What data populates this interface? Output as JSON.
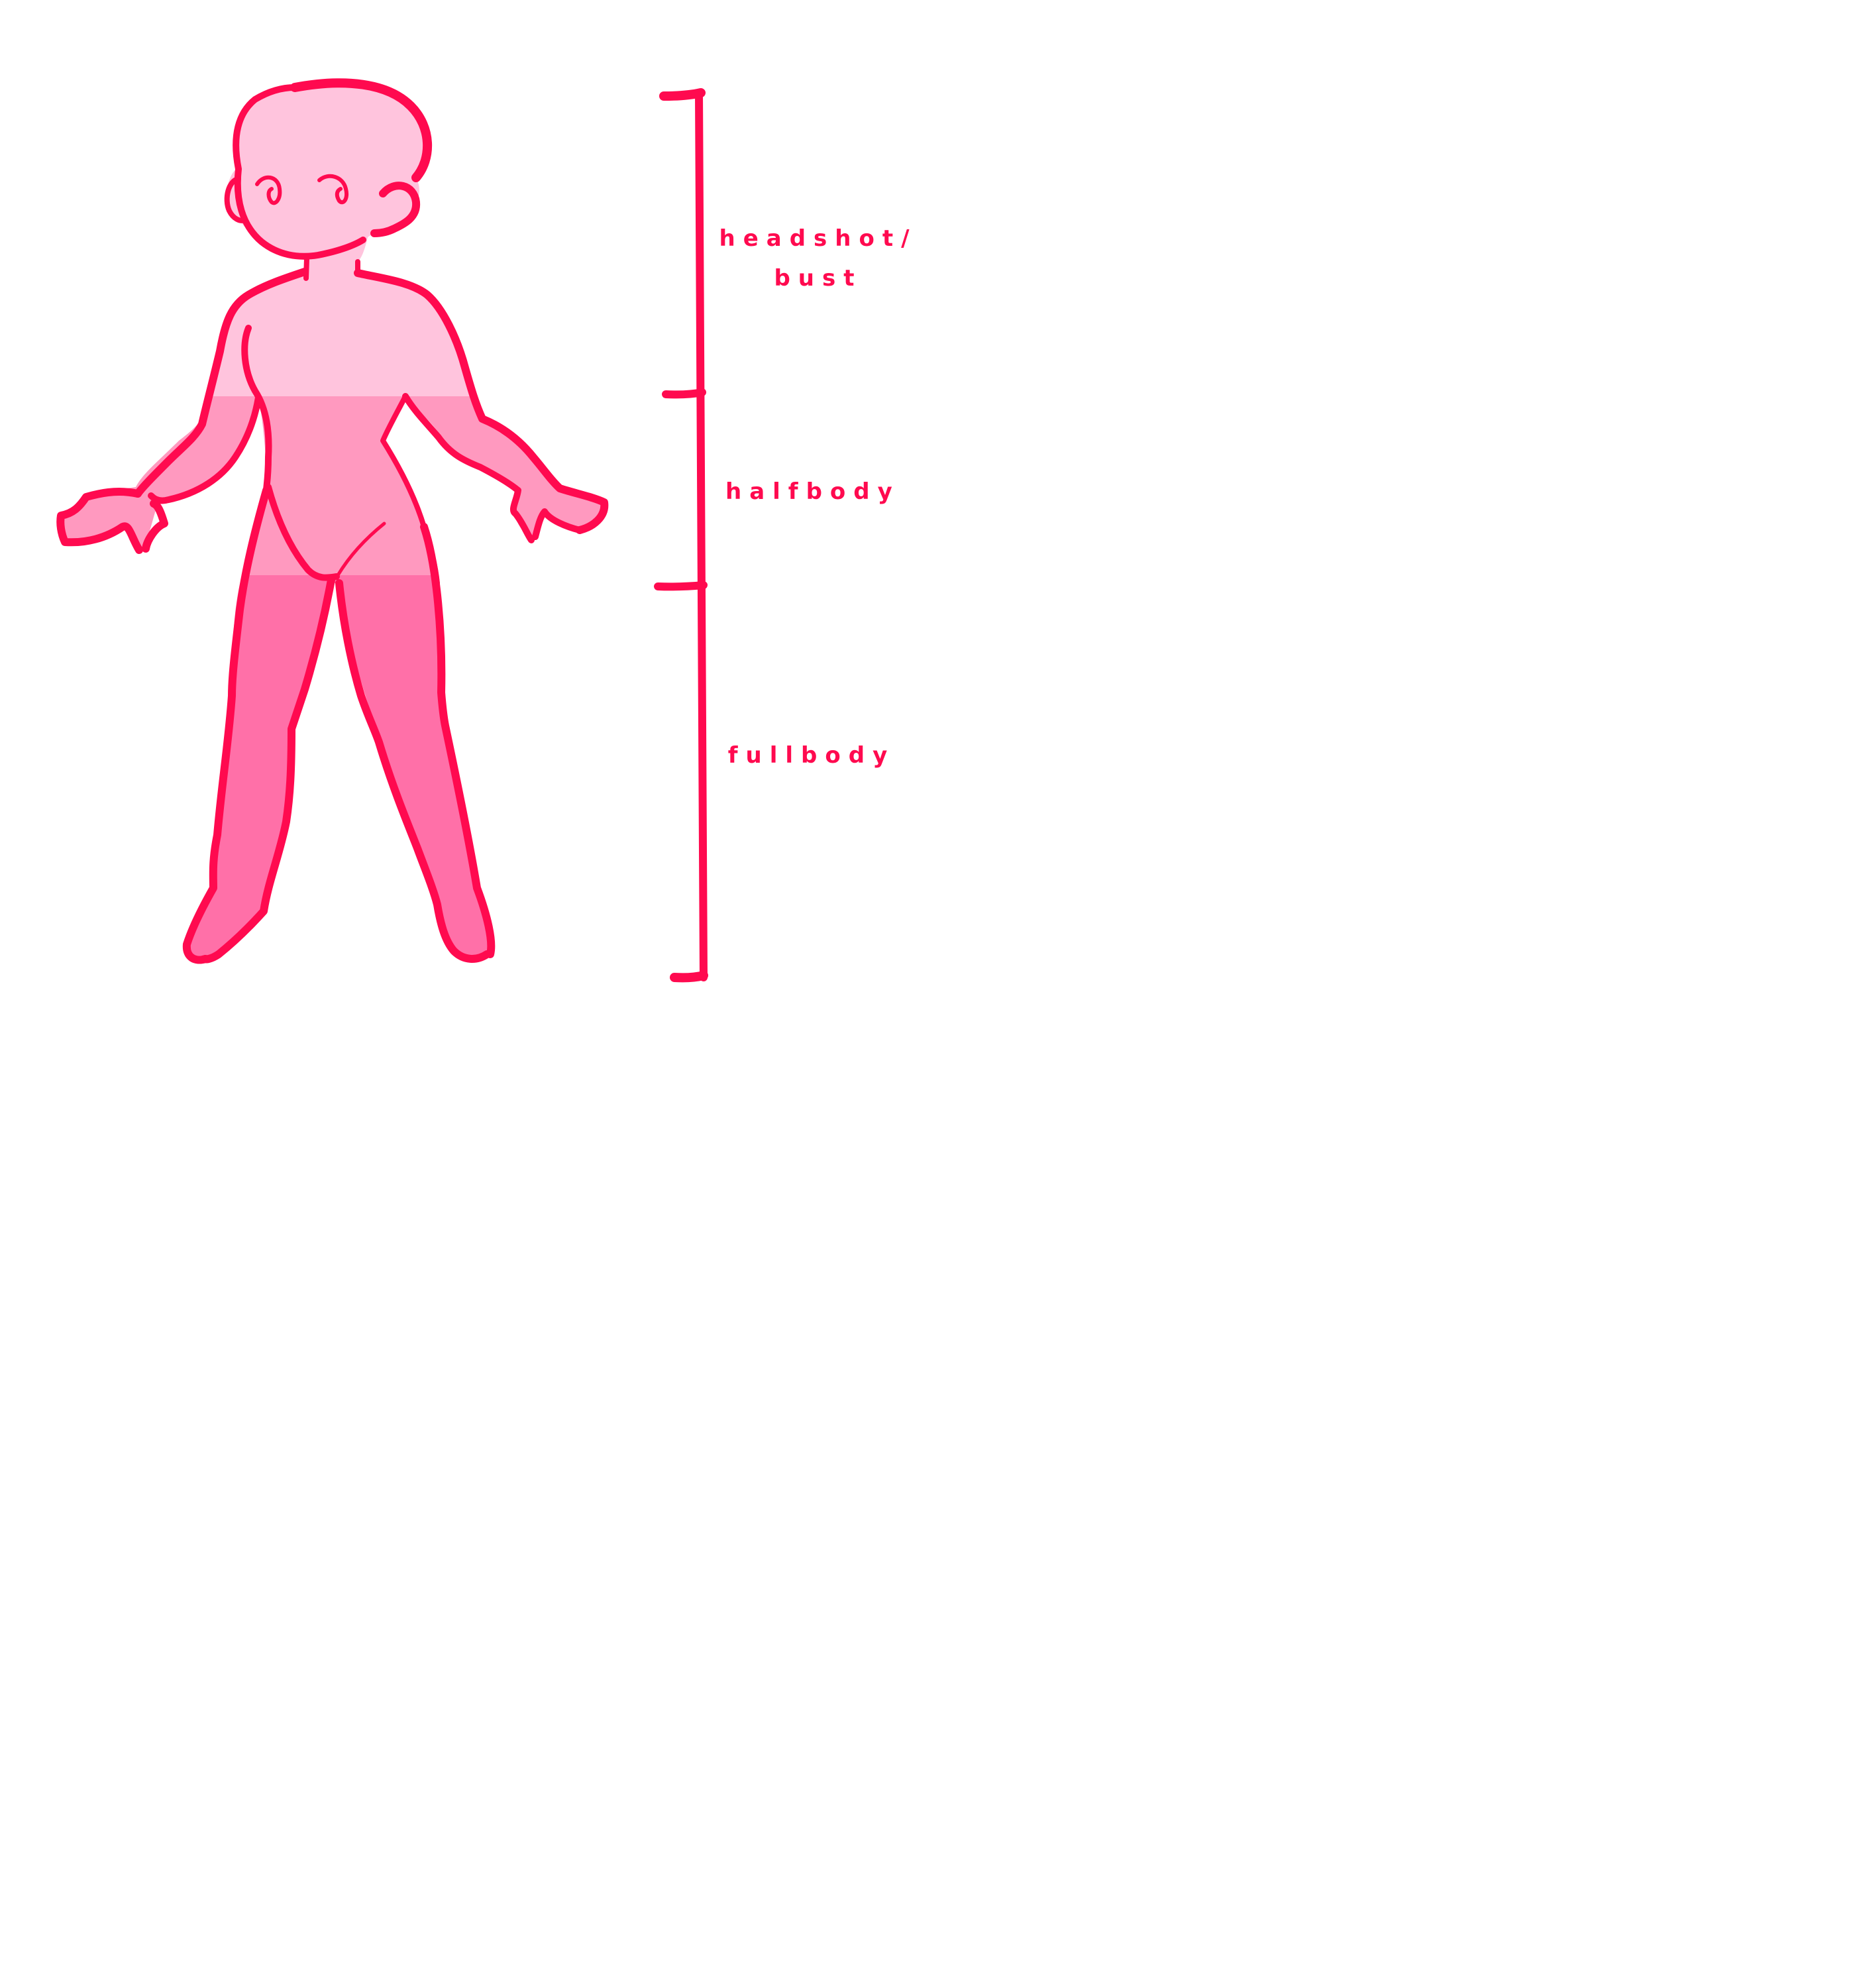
{
  "colors": {
    "outline": "#ff0a4f",
    "headshot_fill": "#ffc4dd",
    "halfbody_fill": "#ff99bf",
    "fullbody_fill": "#ff70a8",
    "background": "#ffffff"
  },
  "sections": [
    {
      "id": "headshot",
      "lines": [
        "headshot/",
        "bust"
      ]
    },
    {
      "id": "halfbody",
      "lines": [
        "halfbody"
      ]
    },
    {
      "id": "fullbody",
      "lines": [
        "fullbody"
      ]
    }
  ]
}
